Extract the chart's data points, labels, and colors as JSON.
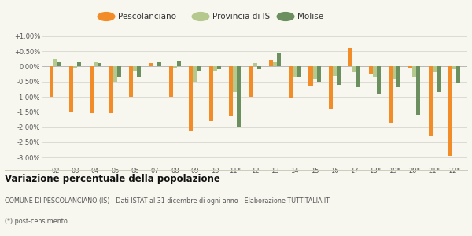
{
  "years": [
    "02",
    "03",
    "04",
    "05",
    "06",
    "07",
    "08",
    "09",
    "10",
    "11*",
    "12",
    "13",
    "14",
    "15",
    "16",
    "17",
    "18*",
    "19*",
    "20*",
    "21*",
    "22*"
  ],
  "pescolanciano": [
    -1.0,
    -1.5,
    -1.55,
    -1.55,
    -1.0,
    0.1,
    -1.0,
    -2.1,
    -1.8,
    -1.65,
    -1.0,
    0.22,
    -1.05,
    -0.65,
    -1.4,
    0.6,
    -0.25,
    -1.85,
    -0.05,
    -2.3,
    -2.95
  ],
  "provincia_is": [
    0.25,
    -0.05,
    0.15,
    -0.5,
    -0.15,
    0.0,
    -0.05,
    -0.5,
    -0.15,
    -0.85,
    0.1,
    0.15,
    -0.35,
    -0.4,
    -0.3,
    -0.2,
    -0.35,
    -0.4,
    -0.35,
    -0.2,
    -0.1
  ],
  "molise": [
    0.15,
    0.15,
    0.1,
    -0.35,
    -0.35,
    0.15,
    0.2,
    -0.15,
    -0.1,
    -2.0,
    -0.1,
    0.45,
    -0.35,
    -0.5,
    -0.6,
    -0.7,
    -0.9,
    -0.7,
    -1.6,
    -0.85,
    -0.55
  ],
  "color_pescolanciano": "#f28c28",
  "color_provincia": "#b5c98e",
  "color_molise": "#6b8f5e",
  "background_color": "#f7f7ef",
  "title": "Variazione percentuale della popolazione",
  "subtitle": "COMUNE DI PESCOLANCIANO (IS) - Dati ISTAT al 31 dicembre di ogni anno - Elaborazione TUTTITALIA.IT",
  "footnote": "(*) post-censimento",
  "legend_pescolanciano": "Pescolanciano",
  "legend_provincia": "Provincia di IS",
  "legend_molise": "Molise",
  "ylim_min": -3.25,
  "ylim_max": 1.25,
  "yticks": [
    1.0,
    0.5,
    0.0,
    -0.5,
    -1.0,
    -1.5,
    -2.0,
    -2.5,
    -3.0
  ]
}
